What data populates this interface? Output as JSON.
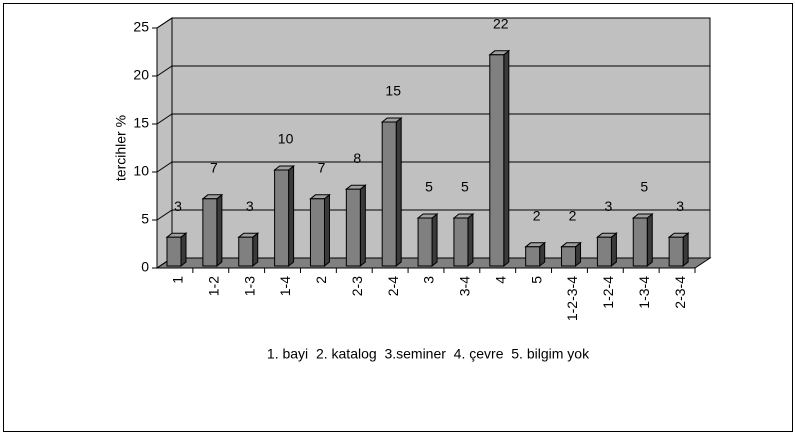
{
  "chart_data": {
    "type": "bar3d",
    "y_label": "tercihler %",
    "note": "1. bayi  2. katalog  3.seminer  4. çevre  5. bilgim yok",
    "categories": [
      "1",
      "1-2",
      "1-3",
      "1-4",
      "2",
      "2-3",
      "2-4",
      "3",
      "3-4",
      "4",
      "5",
      "1-2-3-4",
      "1-2-4",
      "1-3-4",
      "2-3-4"
    ],
    "values": [
      3,
      7,
      3,
      10,
      7,
      8,
      15,
      5,
      5,
      22,
      2,
      2,
      3,
      5,
      3
    ],
    "color": "#808080",
    "ylim": [
      0,
      25
    ],
    "yticks": [
      0,
      5,
      10,
      15,
      20,
      25
    ],
    "grid": true
  }
}
